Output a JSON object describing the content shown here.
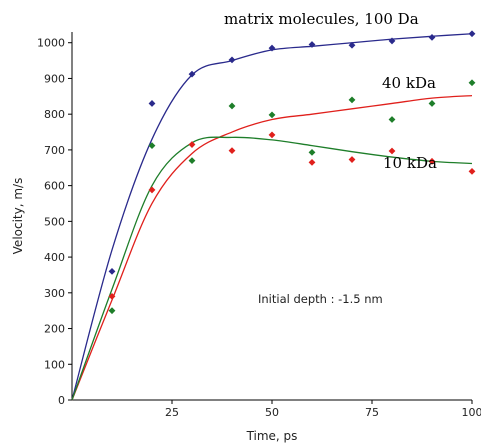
{
  "chart_data": {
    "type": "scatter",
    "xlabel": "Time, ps",
    "ylabel": "Velocity, m/s",
    "xlim": [
      0,
      100
    ],
    "ylim": [
      0,
      1030
    ],
    "x_ticks": [
      25,
      50,
      75,
      100
    ],
    "y_ticks": [
      0,
      100,
      200,
      300,
      400,
      500,
      600,
      700,
      800,
      900,
      1000
    ],
    "grid": false,
    "annotation": "Initial depth : -1.5 nm",
    "series": [
      {
        "name": "matrix molecules, 100 Da",
        "color": "#2a2a8c",
        "points": {
          "x": [
            10,
            20,
            30,
            40,
            50,
            60,
            70,
            80,
            90,
            100
          ],
          "y": [
            360,
            830,
            912,
            952,
            985,
            995,
            993,
            1005,
            1015,
            1025
          ]
        },
        "fit": {
          "x": [
            0,
            10,
            20,
            30,
            40,
            50,
            60,
            70,
            80,
            90,
            100
          ],
          "y": [
            0,
            420,
            730,
            910,
            950,
            980,
            990,
            1000,
            1010,
            1018,
            1025
          ]
        }
      },
      {
        "name": "40 kDa",
        "color": "#e0201c",
        "points": {
          "x": [
            10,
            20,
            30,
            40,
            50,
            60,
            70,
            80,
            90,
            100
          ],
          "y": [
            290,
            588,
            715,
            698,
            742,
            665,
            673,
            697,
            668,
            640
          ]
        },
        "fit": {
          "x": [
            0,
            10,
            20,
            30,
            40,
            50,
            60,
            70,
            80,
            90,
            100
          ],
          "y": [
            0,
            280,
            550,
            690,
            750,
            785,
            800,
            815,
            830,
            845,
            852
          ]
        }
      },
      {
        "name": "10 kDa",
        "color": "#1e7e2a",
        "points": {
          "x": [
            10,
            20,
            30,
            40,
            50,
            60,
            70,
            80,
            90,
            100
          ],
          "y": [
            250,
            712,
            670,
            823,
            798,
            693,
            840,
            785,
            830,
            888
          ]
        },
        "fit": {
          "x": [
            0,
            10,
            20,
            30,
            40,
            50,
            60,
            70,
            80,
            90,
            100
          ],
          "y": [
            0,
            310,
            600,
            720,
            735,
            728,
            712,
            695,
            680,
            668,
            662
          ]
        }
      }
    ]
  }
}
